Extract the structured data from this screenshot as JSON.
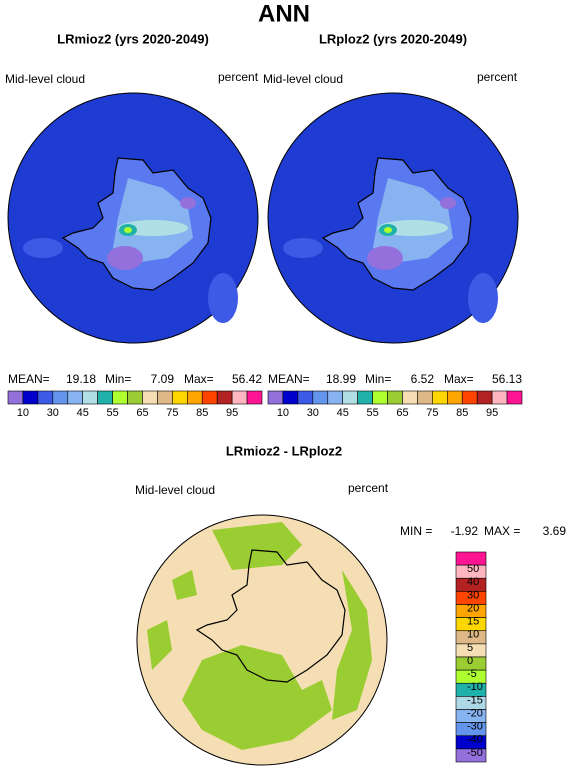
{
  "title": "ANN",
  "panels": [
    {
      "title": "LRmioz2 (yrs 2020-2049)",
      "variable": "Mid-level cloud",
      "units": "percent",
      "stats": {
        "mean_label": "MEAN=",
        "mean": 19.18,
        "min_label": "Min=",
        "min": 7.09,
        "max_label": "Max=",
        "max": 56.42
      }
    },
    {
      "title": "LRploz2 (yrs 2020-2049)",
      "variable": "Mid-level cloud",
      "units": "percent",
      "stats": {
        "mean_label": "MEAN=",
        "mean": 18.99,
        "min_label": "Min=",
        "min": 6.52,
        "max_label": "Max=",
        "max": 56.13
      }
    }
  ],
  "colorbar": {
    "labels": [
      10,
      30,
      45,
      55,
      65,
      75,
      85,
      95
    ],
    "colors": [
      "#9370db",
      "#0000cd",
      "#3c5ae6",
      "#6495ed",
      "#87b4f0",
      "#b0e0e6",
      "#20b2aa",
      "#adff2f",
      "#9acd32",
      "#f5deb3",
      "#deb887",
      "#ffd700",
      "#ffa500",
      "#ff4500",
      "#b22222",
      "#ffb6c1",
      "#ff1493"
    ]
  },
  "difference": {
    "title": "LRmioz2 - LRploz2",
    "variable": "Mid-level cloud",
    "units": "percent",
    "stats": {
      "min_label": "MIN =",
      "min": -1.92,
      "max_label": "MAX =",
      "max": 3.69
    },
    "colorbar": {
      "labels": [
        50,
        40,
        30,
        20,
        15,
        10,
        5,
        0,
        -5,
        -10,
        -15,
        -20,
        -30,
        -40,
        -50
      ],
      "colors": [
        "#ff1493",
        "#ffb6c1",
        "#b22222",
        "#ff4500",
        "#ffa500",
        "#ffd700",
        "#deb887",
        "#f5deb3",
        "#9acd32",
        "#adff2f",
        "#20b2aa",
        "#add8e6",
        "#87b4f0",
        "#6495ed",
        "#0000cd",
        "#9370db"
      ]
    }
  }
}
